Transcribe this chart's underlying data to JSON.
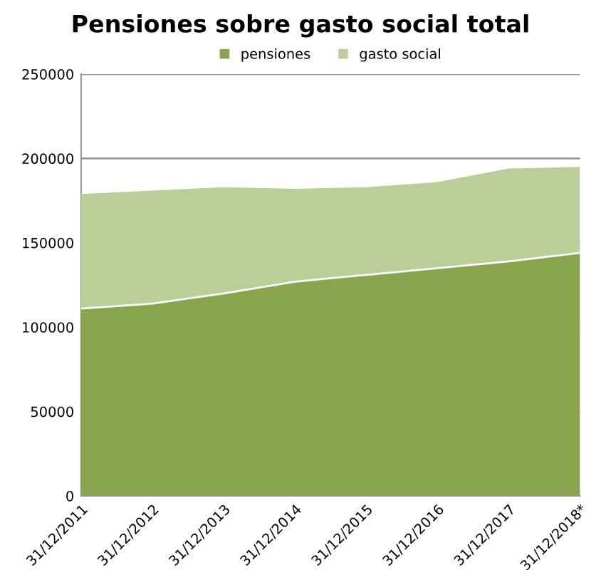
{
  "chart_data": {
    "type": "area",
    "title": "Pensiones sobre gasto social total",
    "categories": [
      "31/12/2011",
      "31/12/2012",
      "31/12/2013",
      "31/12/2014",
      "31/12/2015",
      "31/12/2016",
      "31/12/2017",
      "31/12/2018*"
    ],
    "series": [
      {
        "name": "pensiones",
        "color": "#88a44c",
        "values": [
          111000,
          114000,
          120000,
          127000,
          131000,
          135000,
          139000,
          144000
        ]
      },
      {
        "name": "gasto social",
        "color": "#bcce98",
        "values": [
          179000,
          181000,
          183000,
          182000,
          183000,
          186000,
          194000,
          195000
        ]
      }
    ],
    "ylim": [
      0,
      250000
    ],
    "yticks": [
      0,
      50000,
      100000,
      150000,
      200000,
      250000
    ],
    "grid": "y",
    "legend": "top"
  }
}
